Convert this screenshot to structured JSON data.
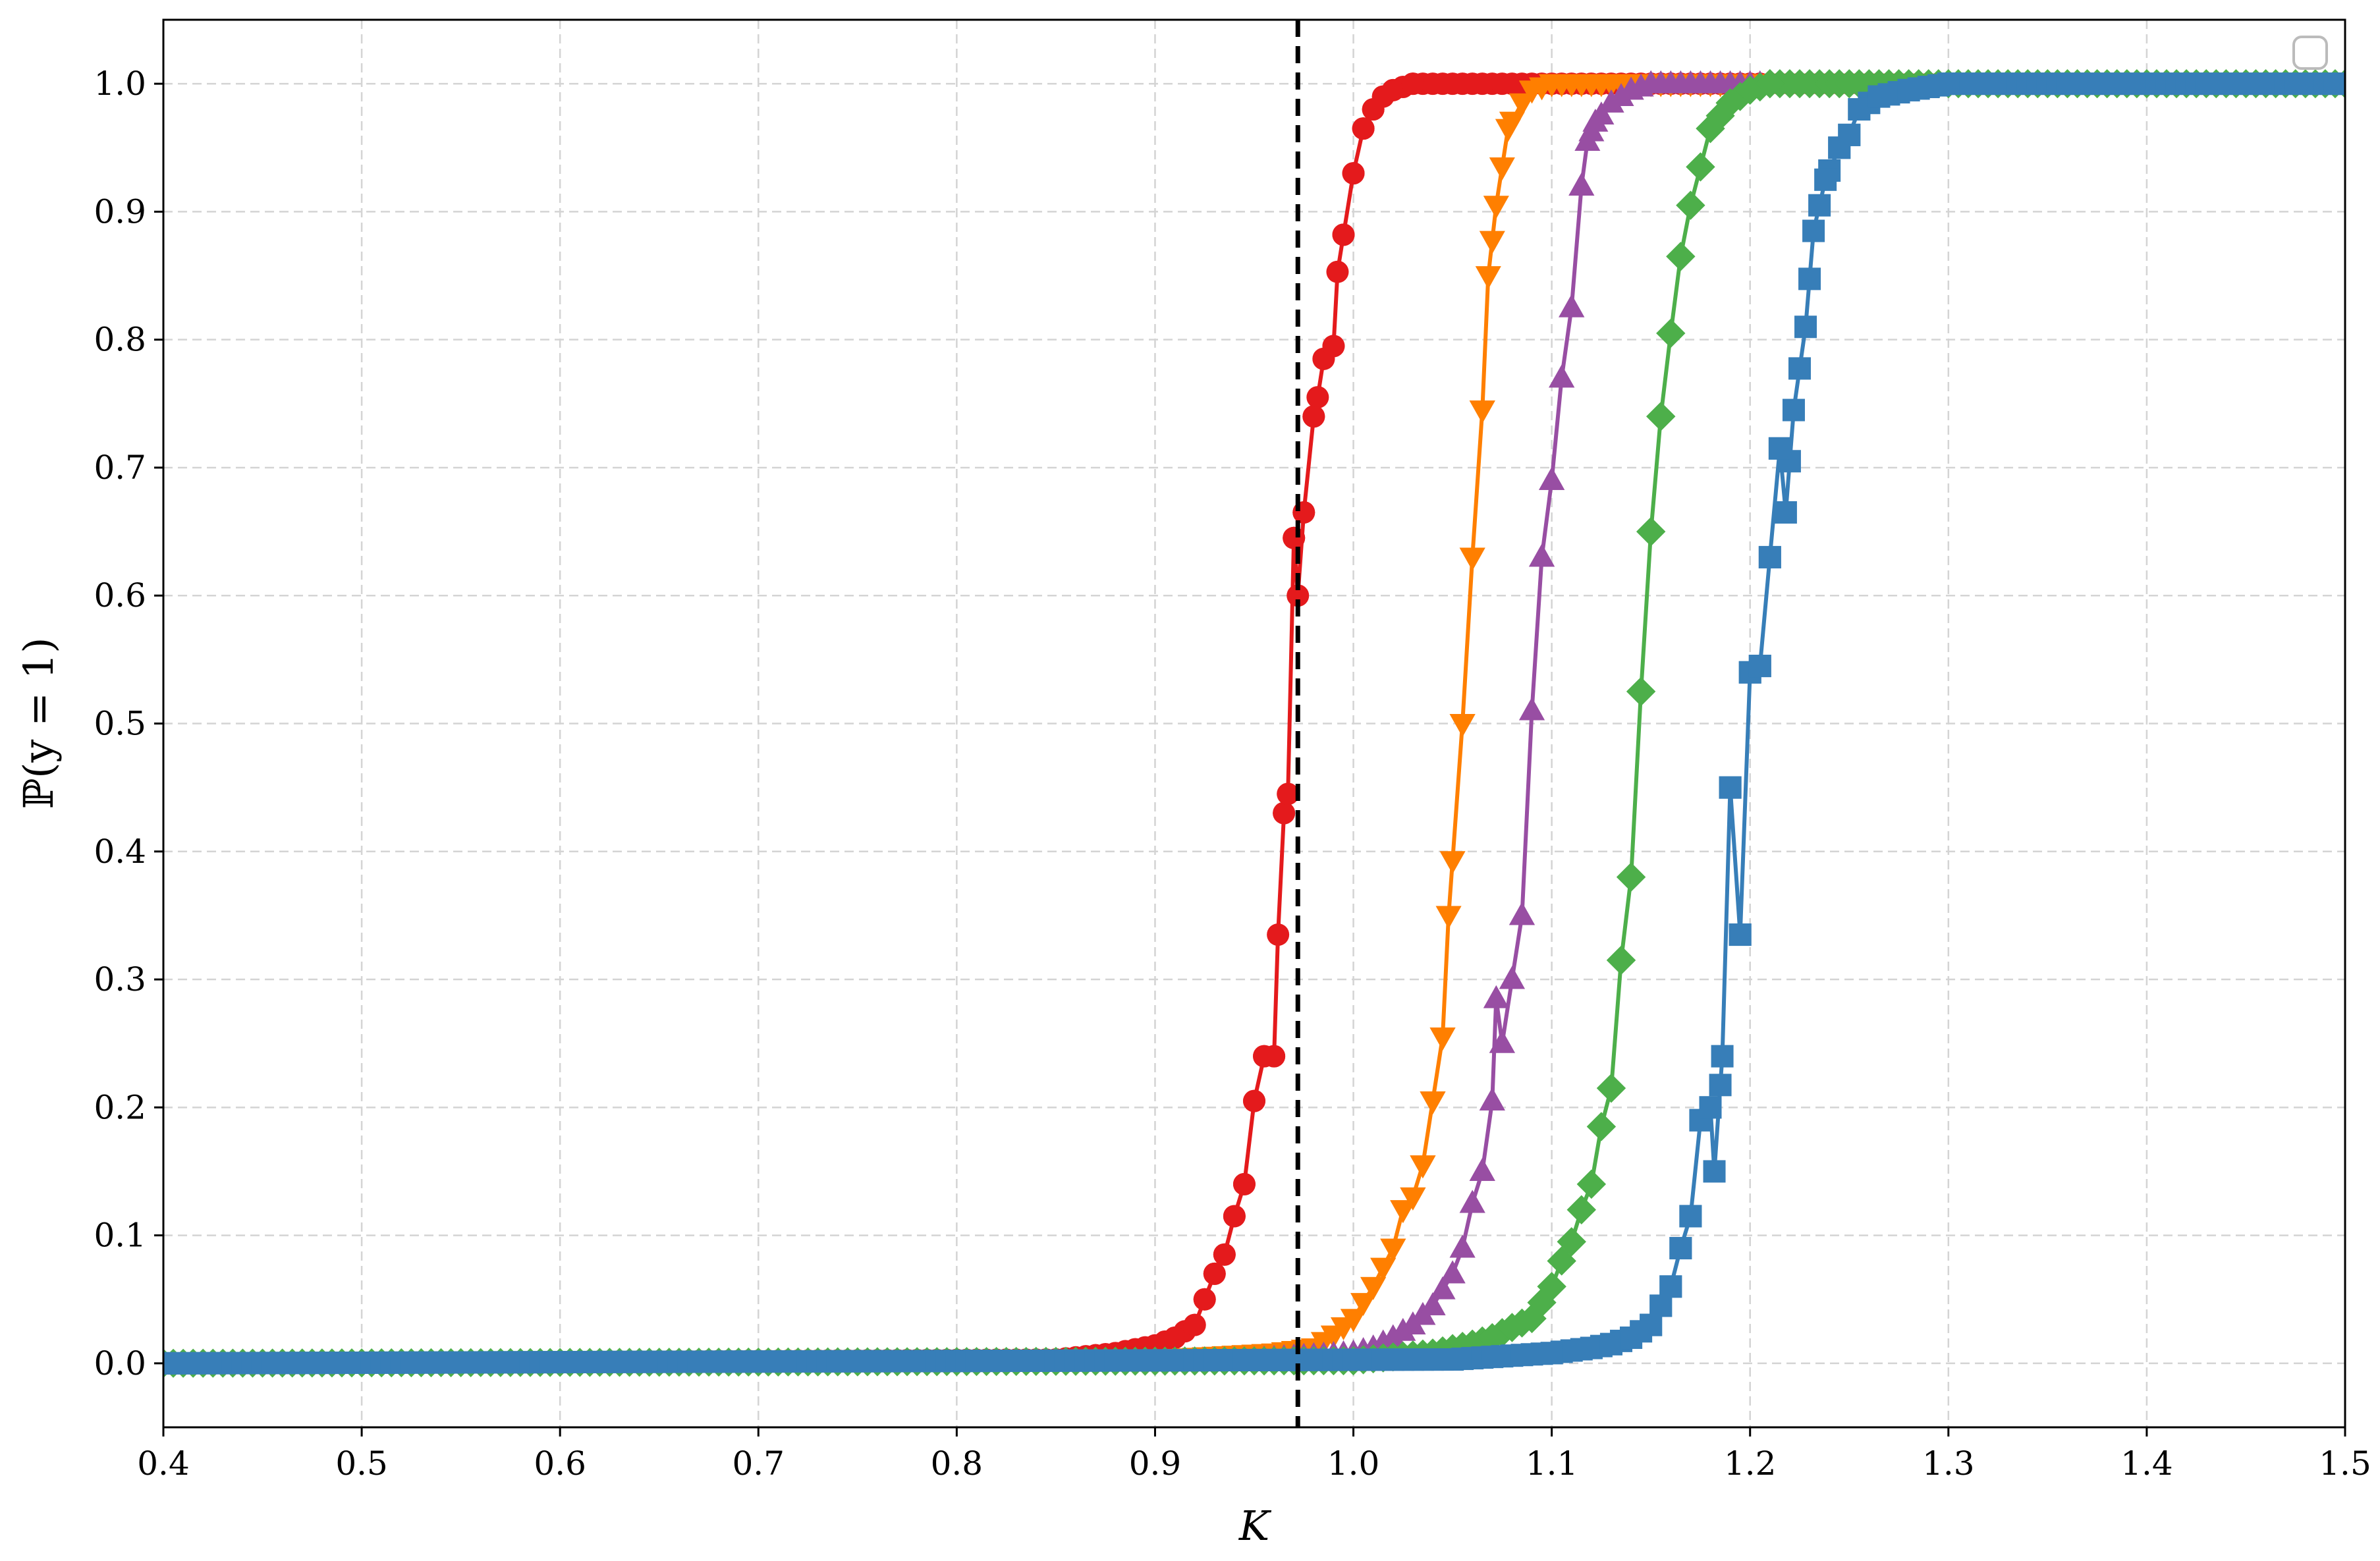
{
  "chart_data": {
    "type": "line",
    "title": "",
    "xlabel": "K",
    "ylabel": "ℙ(y = 1)",
    "xlim": [
      0.4,
      1.5
    ],
    "ylim": [
      -0.05,
      1.05
    ],
    "x_ticks": [
      "0.4",
      "0.5",
      "0.6",
      "0.7",
      "0.8",
      "0.9",
      "1.0",
      "1.1",
      "1.2",
      "1.3",
      "1.4",
      "1.5"
    ],
    "y_ticks": [
      "0.0",
      "0.1",
      "0.2",
      "0.3",
      "0.4",
      "0.5",
      "0.6",
      "0.7",
      "0.8",
      "0.9",
      "1.0"
    ],
    "grid": true,
    "legend": "top-right (empty)",
    "reference_line": {
      "orientation": "vertical",
      "x": 0.972,
      "style": "dashed",
      "color": "#000000"
    },
    "series": [
      {
        "color": "#e41a1c",
        "marker": "circle",
        "points": [
          [
            0.4,
            0.0
          ],
          [
            0.85,
            0.003
          ],
          [
            0.88,
            0.008
          ],
          [
            0.9,
            0.014
          ],
          [
            0.91,
            0.02
          ],
          [
            0.92,
            0.03
          ],
          [
            0.925,
            0.05
          ],
          [
            0.93,
            0.07
          ],
          [
            0.935,
            0.085
          ],
          [
            0.94,
            0.115
          ],
          [
            0.945,
            0.14
          ],
          [
            0.95,
            0.205
          ],
          [
            0.955,
            0.24
          ],
          [
            0.96,
            0.24
          ],
          [
            0.962,
            0.335
          ],
          [
            0.965,
            0.43
          ],
          [
            0.967,
            0.445
          ],
          [
            0.97,
            0.645
          ],
          [
            0.972,
            0.6
          ],
          [
            0.975,
            0.665
          ],
          [
            0.98,
            0.74
          ],
          [
            0.982,
            0.755
          ],
          [
            0.985,
            0.785
          ],
          [
            0.99,
            0.795
          ],
          [
            0.992,
            0.853
          ],
          [
            0.995,
            0.882
          ],
          [
            1.0,
            0.93
          ],
          [
            1.005,
            0.965
          ],
          [
            1.01,
            0.98
          ],
          [
            1.015,
            0.99
          ],
          [
            1.02,
            0.995
          ],
          [
            1.03,
            1.0
          ],
          [
            1.5,
            1.0
          ]
        ]
      },
      {
        "color": "#ff7f00",
        "marker": "triangle-down",
        "points": [
          [
            0.4,
            0.0
          ],
          [
            0.9,
            0.003
          ],
          [
            0.96,
            0.008
          ],
          [
            0.98,
            0.012
          ],
          [
            0.99,
            0.022
          ],
          [
            1.0,
            0.035
          ],
          [
            1.01,
            0.06
          ],
          [
            1.015,
            0.075
          ],
          [
            1.02,
            0.09
          ],
          [
            1.025,
            0.12
          ],
          [
            1.03,
            0.13
          ],
          [
            1.035,
            0.155
          ],
          [
            1.04,
            0.205
          ],
          [
            1.045,
            0.255
          ],
          [
            1.048,
            0.35
          ],
          [
            1.055,
            0.5
          ],
          [
            1.06,
            0.63
          ],
          [
            1.065,
            0.745
          ],
          [
            1.068,
            0.85
          ],
          [
            1.072,
            0.905
          ],
          [
            1.078,
            0.965
          ],
          [
            1.085,
            0.985
          ],
          [
            1.09,
            0.995
          ],
          [
            1.1,
            1.0
          ],
          [
            1.5,
            1.0
          ]
        ]
      },
      {
        "color": "#984ea3",
        "marker": "triangle-up",
        "points": [
          [
            0.4,
            0.0
          ],
          [
            0.95,
            0.003
          ],
          [
            1.0,
            0.008
          ],
          [
            1.01,
            0.012
          ],
          [
            1.02,
            0.02
          ],
          [
            1.03,
            0.03
          ],
          [
            1.04,
            0.045
          ],
          [
            1.05,
            0.07
          ],
          [
            1.055,
            0.09
          ],
          [
            1.06,
            0.125
          ],
          [
            1.065,
            0.15
          ],
          [
            1.07,
            0.205
          ],
          [
            1.072,
            0.285
          ],
          [
            1.075,
            0.25
          ],
          [
            1.08,
            0.3
          ],
          [
            1.085,
            0.35
          ],
          [
            1.09,
            0.51
          ],
          [
            1.095,
            0.63
          ],
          [
            1.1,
            0.69
          ],
          [
            1.105,
            0.77
          ],
          [
            1.11,
            0.825
          ],
          [
            1.115,
            0.92
          ],
          [
            1.118,
            0.955
          ],
          [
            1.122,
            0.97
          ],
          [
            1.13,
            0.985
          ],
          [
            1.14,
            0.995
          ],
          [
            1.15,
            1.0
          ],
          [
            1.5,
            1.0
          ]
        ]
      },
      {
        "color": "#4daf4a",
        "marker": "diamond",
        "points": [
          [
            0.4,
            0.0
          ],
          [
            1.0,
            0.002
          ],
          [
            1.04,
            0.008
          ],
          [
            1.06,
            0.015
          ],
          [
            1.07,
            0.02
          ],
          [
            1.08,
            0.028
          ],
          [
            1.09,
            0.035
          ],
          [
            1.1,
            0.06
          ],
          [
            1.105,
            0.08
          ],
          [
            1.11,
            0.095
          ],
          [
            1.115,
            0.12
          ],
          [
            1.12,
            0.14
          ],
          [
            1.125,
            0.185
          ],
          [
            1.13,
            0.215
          ],
          [
            1.135,
            0.315
          ],
          [
            1.14,
            0.38
          ],
          [
            1.145,
            0.525
          ],
          [
            1.15,
            0.65
          ],
          [
            1.155,
            0.74
          ],
          [
            1.16,
            0.805
          ],
          [
            1.165,
            0.865
          ],
          [
            1.17,
            0.905
          ],
          [
            1.175,
            0.935
          ],
          [
            1.18,
            0.965
          ],
          [
            1.19,
            0.985
          ],
          [
            1.2,
            0.995
          ],
          [
            1.21,
            1.0
          ],
          [
            1.5,
            1.0
          ]
        ]
      },
      {
        "color": "#377eb8",
        "marker": "square",
        "points": [
          [
            0.4,
            0.0
          ],
          [
            1.05,
            0.003
          ],
          [
            1.1,
            0.008
          ],
          [
            1.12,
            0.012
          ],
          [
            1.13,
            0.015
          ],
          [
            1.14,
            0.02
          ],
          [
            1.15,
            0.03
          ],
          [
            1.155,
            0.045
          ],
          [
            1.16,
            0.06
          ],
          [
            1.165,
            0.09
          ],
          [
            1.17,
            0.115
          ],
          [
            1.175,
            0.19
          ],
          [
            1.18,
            0.2
          ],
          [
            1.182,
            0.15
          ],
          [
            1.186,
            0.24
          ],
          [
            1.19,
            0.45
          ],
          [
            1.195,
            0.335
          ],
          [
            1.2,
            0.54
          ],
          [
            1.205,
            0.545
          ],
          [
            1.21,
            0.63
          ],
          [
            1.215,
            0.715
          ],
          [
            1.218,
            0.665
          ],
          [
            1.222,
            0.745
          ],
          [
            1.228,
            0.81
          ],
          [
            1.232,
            0.885
          ],
          [
            1.238,
            0.925
          ],
          [
            1.245,
            0.95
          ],
          [
            1.25,
            0.96
          ],
          [
            1.255,
            0.98
          ],
          [
            1.265,
            0.99
          ],
          [
            1.28,
            0.995
          ],
          [
            1.3,
            1.0
          ],
          [
            1.5,
            1.0
          ]
        ]
      }
    ]
  }
}
